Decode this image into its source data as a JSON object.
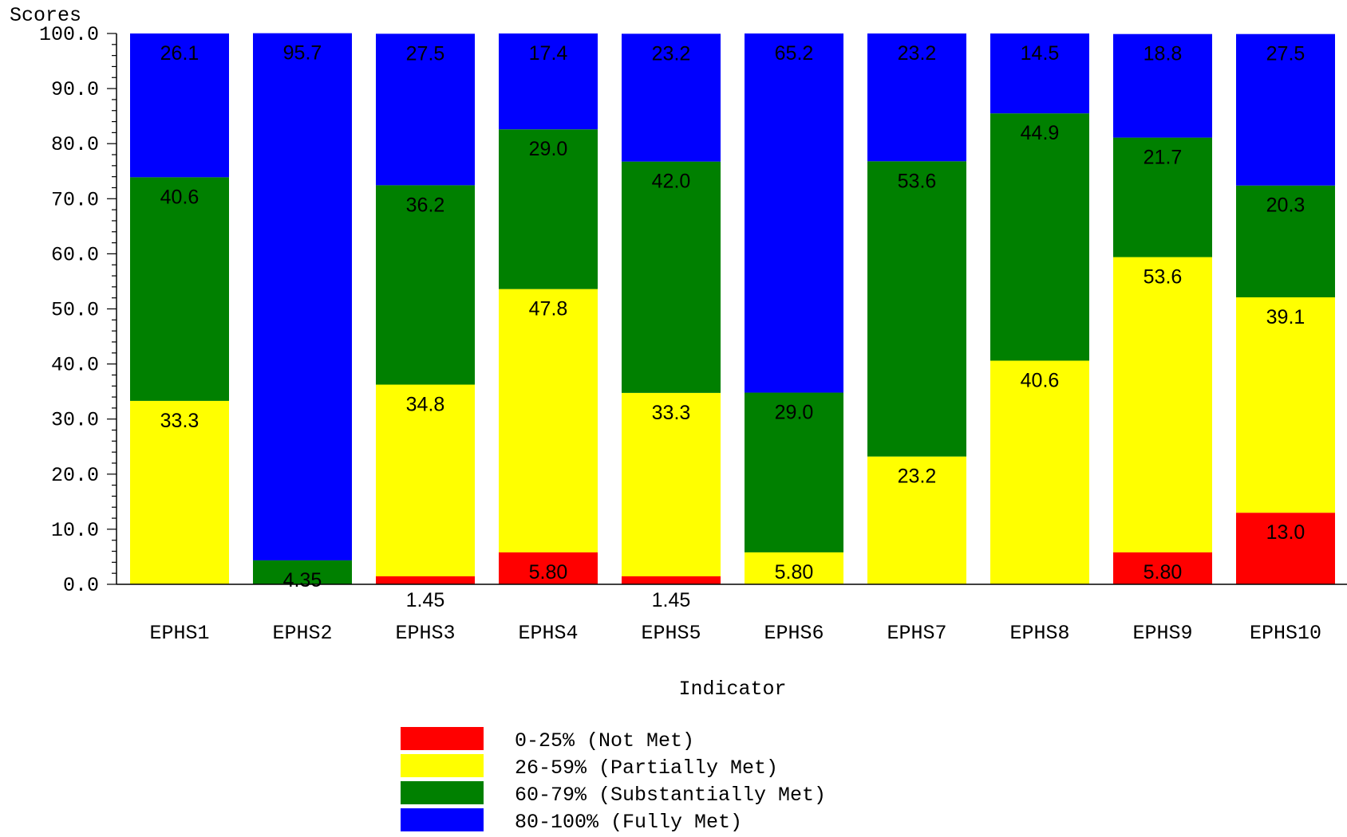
{
  "chart_data": {
    "type": "bar",
    "stacked": true,
    "ylabel": "Scores",
    "xlabel": "Indicator",
    "ylim": [
      0,
      100
    ],
    "yticks": [
      "0.0",
      "10.0",
      "20.0",
      "30.0",
      "40.0",
      "50.0",
      "60.0",
      "70.0",
      "80.0",
      "90.0",
      "100.0"
    ],
    "categories": [
      "EPHS1",
      "EPHS2",
      "EPHS3",
      "EPHS4",
      "EPHS5",
      "EPHS6",
      "EPHS7",
      "EPHS8",
      "EPHS9",
      "EPHS10"
    ],
    "series": [
      {
        "name": "0-25% (Not Met)",
        "color": "#ff0000",
        "values": [
          0,
          0,
          1.45,
          5.8,
          1.45,
          0,
          0,
          0,
          5.8,
          13.0
        ],
        "labels": [
          "",
          "",
          "1.45",
          "5.80",
          "1.45",
          "",
          "",
          "",
          "5.80",
          "13.0"
        ]
      },
      {
        "name": "26-59% (Partially Met)",
        "color": "#ffff00",
        "values": [
          33.3,
          0,
          34.8,
          47.8,
          33.3,
          5.8,
          23.2,
          40.6,
          53.6,
          39.1
        ],
        "labels": [
          "33.3",
          "",
          "34.8",
          "47.8",
          "33.3",
          "5.80",
          "23.2",
          "40.6",
          "53.6",
          "39.1"
        ]
      },
      {
        "name": "60-79% (Substantially Met)",
        "color": "#008000",
        "values": [
          40.6,
          4.35,
          36.2,
          29.0,
          42.0,
          29.0,
          53.6,
          44.9,
          21.7,
          20.3
        ],
        "labels": [
          "40.6",
          "4.35",
          "36.2",
          "29.0",
          "42.0",
          "29.0",
          "53.6",
          "44.9",
          "21.7",
          "20.3"
        ]
      },
      {
        "name": "80-100% (Fully Met)",
        "color": "#0000ff",
        "values": [
          26.1,
          95.7,
          27.5,
          17.4,
          23.2,
          65.2,
          23.2,
          14.5,
          18.8,
          27.5
        ],
        "labels": [
          "26.1",
          "95.7",
          "27.5",
          "17.4",
          "23.2",
          "65.2",
          "23.2",
          "14.5",
          "18.8",
          "27.5"
        ]
      }
    ]
  }
}
